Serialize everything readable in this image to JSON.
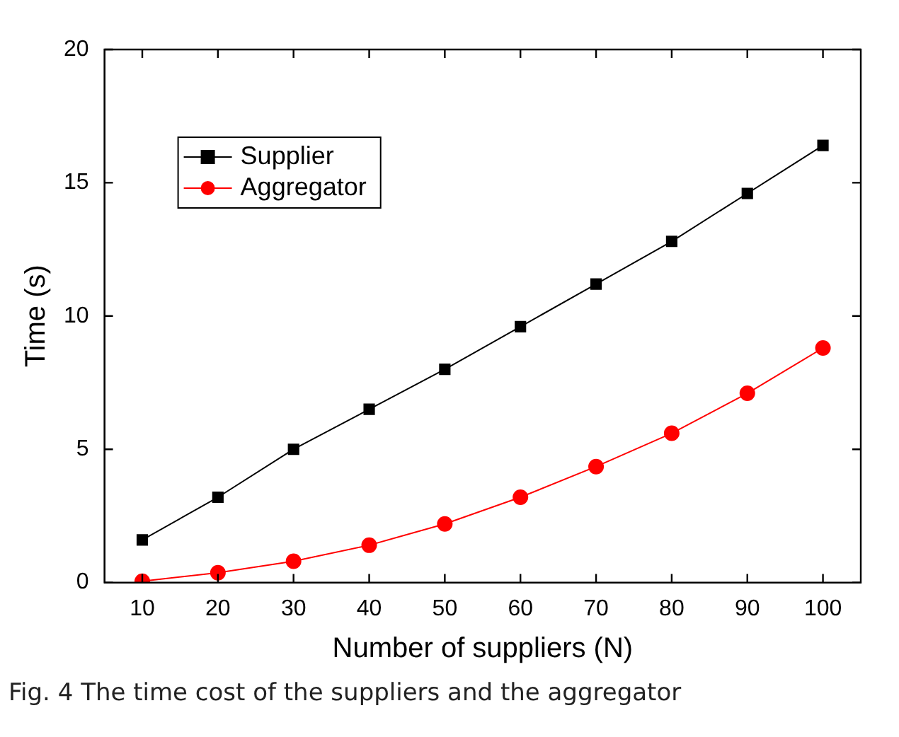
{
  "chart_data": {
    "type": "line",
    "xlabel": "Number of suppliers (N)",
    "ylabel": "Time (s)",
    "x": [
      10,
      20,
      30,
      40,
      50,
      60,
      70,
      80,
      90,
      100
    ],
    "series": [
      {
        "name": "Supplier",
        "color": "#000000",
        "marker": "square",
        "values": [
          1.6,
          3.2,
          5.0,
          6.5,
          8.0,
          9.6,
          11.2,
          12.8,
          14.6,
          16.4
        ]
      },
      {
        "name": "Aggregator",
        "color": "#ff0000",
        "marker": "circle",
        "values": [
          0.05,
          0.37,
          0.8,
          1.4,
          2.2,
          3.2,
          4.35,
          5.6,
          7.1,
          8.8
        ]
      }
    ],
    "xlim": [
      5,
      105
    ],
    "xticks": [
      10,
      20,
      30,
      40,
      50,
      60,
      70,
      80,
      90,
      100
    ],
    "ylim": [
      0,
      20
    ],
    "yticks": [
      0,
      5,
      10,
      15,
      20
    ],
    "grid": false,
    "legend": "top left",
    "line_style": "solid",
    "annotations": [
      "Fig. 4 The time cost of the suppliers and the aggregator"
    ]
  }
}
